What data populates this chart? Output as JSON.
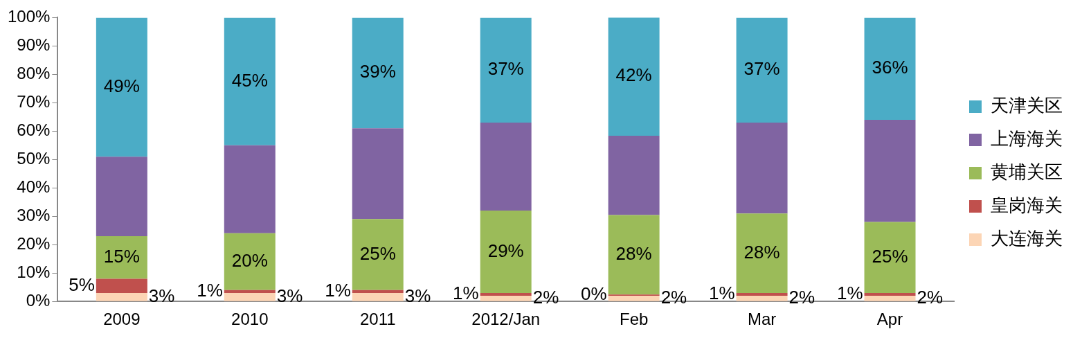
{
  "chart_data": {
    "type": "bar",
    "stacked": true,
    "categories": [
      "2009",
      "2010",
      "2011",
      "2012/Jan",
      "Feb",
      "Mar",
      "Apr"
    ],
    "ylim": [
      0,
      100
    ],
    "yticks": [
      {
        "value": 0,
        "label": "0%"
      },
      {
        "value": 10,
        "label": "10%"
      },
      {
        "value": 20,
        "label": "20%"
      },
      {
        "value": 30,
        "label": "30%"
      },
      {
        "value": 40,
        "label": "40%"
      },
      {
        "value": 50,
        "label": "50%"
      },
      {
        "value": 60,
        "label": "60%"
      },
      {
        "value": 70,
        "label": "70%"
      },
      {
        "value": 80,
        "label": "80%"
      },
      {
        "value": 90,
        "label": "90%"
      },
      {
        "value": 100,
        "label": "100%"
      }
    ],
    "grid": false,
    "legend": "right",
    "series": [
      {
        "name": "大连海关",
        "color": "#fcd5b5",
        "values": [
          3,
          3,
          3,
          2,
          2,
          2,
          2
        ],
        "value_labels": [
          "3%",
          "3%",
          "3%",
          "2%",
          "2%",
          "2%",
          "2%"
        ]
      },
      {
        "name": "皇岗海关",
        "color": "#c0504d",
        "values": [
          5,
          1,
          1,
          1,
          0.4,
          1,
          1
        ],
        "value_labels": [
          "5%",
          "1%",
          "1%",
          "1%",
          "0%",
          "1%",
          "1%"
        ]
      },
      {
        "name": "黄埔关区",
        "color": "#9bbb59",
        "values": [
          15,
          20,
          25,
          29,
          28,
          28,
          25
        ],
        "value_labels": [
          "15%",
          "20%",
          "25%",
          "29%",
          "28%",
          "28%",
          "25%"
        ]
      },
      {
        "name": "上海海关",
        "color": "#8064a2",
        "values": [
          28,
          31,
          32,
          31,
          28,
          32,
          36
        ]
      },
      {
        "name": "天津关区",
        "color": "#4bacc6",
        "values": [
          49,
          45,
          39,
          37,
          42,
          37,
          36
        ],
        "value_labels": [
          "49%",
          "45%",
          "39%",
          "37%",
          "42%",
          "37%",
          "36%"
        ]
      }
    ]
  }
}
